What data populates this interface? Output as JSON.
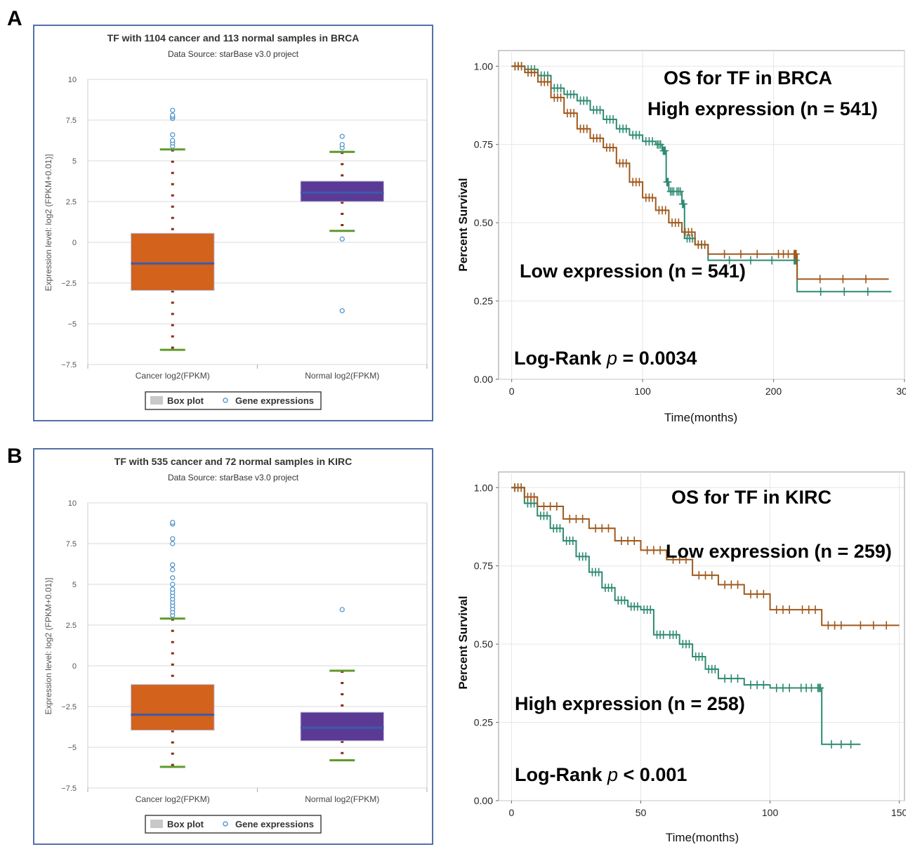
{
  "panels": [
    {
      "letter": "A",
      "boxplot": {
        "title": "TF with 1104 cancer and 113 normal samples in BRCA",
        "subtitle": "Data Source: starBase v3.0 project",
        "ylabel": "Expression level: log2 (FPKM+0.01)]",
        "yticks": [
          "10",
          "7.5",
          "5",
          "2.5",
          "0",
          "−2.5",
          "−5",
          "−7.5"
        ],
        "legend": {
          "box": "Box plot",
          "points": "Gene expressions"
        }
      },
      "survival": {
        "title": "OS for TF in BRCA",
        "high_label": "High expression (n = 541)",
        "low_label": "Low expression (n = 541)",
        "pvalue_prefix": "Log-Rank ",
        "pvalue_p": "p",
        "pvalue_rest": " = 0.0034",
        "ylabel": "Percent Survival",
        "xlabel": "Time(months)",
        "yticks": [
          "0.00",
          "0.25",
          "0.50",
          "0.75",
          "1.00"
        ],
        "xticks": [
          "0",
          "100",
          "200",
          "300"
        ]
      }
    },
    {
      "letter": "B",
      "boxplot": {
        "title": "TF with 535 cancer and 72 normal samples in KIRC",
        "subtitle": "Data Source: starBase v3.0 project",
        "ylabel": "Expression level: log2 (FPKM+0.01)]",
        "yticks": [
          "10",
          "7.5",
          "5",
          "2.5",
          "0",
          "−2.5",
          "−5",
          "−7.5"
        ],
        "legend": {
          "box": "Box plot",
          "points": "Gene expressions"
        }
      },
      "survival": {
        "title": "OS for TF in KIRC",
        "high_label": "High expression (n = 258)",
        "low_label": "Low expression (n = 259)",
        "pvalue_prefix": "Log-Rank ",
        "pvalue_p": "p",
        "pvalue_rest": " < 0.001",
        "ylabel": "Percent Survival",
        "xlabel": "Time(months)",
        "yticks": [
          "0.00",
          "0.25",
          "0.50",
          "0.75",
          "1.00"
        ],
        "xticks": [
          "0",
          "50",
          "100",
          "150"
        ]
      }
    }
  ],
  "colors": {
    "cancer_box": "#d2621c",
    "normal_box": "#5b3a96",
    "median": "#3c5aa8",
    "whisker": "#5e9a2a",
    "dots": "#8b2a14",
    "outlier": "#4a90c8",
    "high_line": "#2e8a72",
    "low_line": "#a0581c",
    "frame": "#5470a8"
  },
  "chart_data": [
    {
      "type": "box",
      "title": "TF with 1104 cancer and 113 normal samples in BRCA",
      "categories": [
        "Cancer log2(FPKM)",
        "Normal log2(FPKM)"
      ],
      "ylim": [
        -7.5,
        10
      ],
      "boxes": [
        {
          "name": "Cancer log2(FPKM)",
          "whisker_low": -6.6,
          "q1": -2.95,
          "median": -1.3,
          "q3": 0.55,
          "whisker_high": 5.7,
          "outliers": [
            5.9,
            6.1,
            6.25,
            6.6,
            7.6,
            7.7,
            7.8,
            8.1
          ]
        },
        {
          "name": "Normal log2(FPKM)",
          "whisker_low": 0.7,
          "q1": 2.5,
          "median": 3.05,
          "q3": 3.75,
          "whisker_high": 5.55,
          "outliers": [
            0.2,
            -4.2,
            5.8,
            6.0,
            6.5
          ]
        }
      ]
    },
    {
      "type": "line",
      "title": "OS for TF in BRCA",
      "xlabel": "Time(months)",
      "ylabel": "Percent Survival",
      "xlim": [
        -10,
        300
      ],
      "ylim": [
        0,
        1.05
      ],
      "series": [
        {
          "name": "High expression (n = 541)",
          "x": [
            0,
            10,
            20,
            30,
            40,
            50,
            60,
            70,
            80,
            90,
            100,
            110,
            115,
            118,
            120,
            125,
            130,
            132,
            140,
            150,
            215,
            218,
            290
          ],
          "y": [
            1.0,
            0.99,
            0.97,
            0.93,
            0.91,
            0.89,
            0.86,
            0.83,
            0.8,
            0.78,
            0.76,
            0.75,
            0.73,
            0.63,
            0.6,
            0.6,
            0.56,
            0.45,
            0.43,
            0.38,
            0.38,
            0.28,
            0.28
          ]
        },
        {
          "name": "Low expression (n = 541)",
          "x": [
            0,
            10,
            20,
            30,
            40,
            50,
            60,
            70,
            80,
            90,
            100,
            110,
            120,
            130,
            140,
            150,
            200,
            215,
            218,
            288
          ],
          "y": [
            1.0,
            0.98,
            0.95,
            0.9,
            0.85,
            0.8,
            0.77,
            0.74,
            0.69,
            0.63,
            0.58,
            0.54,
            0.5,
            0.47,
            0.43,
            0.4,
            0.4,
            0.4,
            0.32,
            0.32
          ]
        }
      ]
    },
    {
      "type": "box",
      "title": "TF with 535 cancer and 72 normal samples in KIRC",
      "categories": [
        "Cancer log2(FPKM)",
        "Normal log2(FPKM)"
      ],
      "ylim": [
        -7.5,
        10
      ],
      "boxes": [
        {
          "name": "Cancer log2(FPKM)",
          "whisker_low": -6.2,
          "q1": -3.95,
          "median": -3.0,
          "q3": -1.15,
          "whisker_high": 2.9,
          "outliers": [
            3.1,
            3.3,
            3.5,
            3.7,
            3.9,
            4.1,
            4.3,
            4.5,
            4.7,
            5.0,
            5.4,
            5.9,
            6.2,
            7.5,
            7.8,
            8.7,
            8.8
          ]
        },
        {
          "name": "Normal log2(FPKM)",
          "whisker_low": -5.8,
          "q1": -4.6,
          "median": -3.8,
          "q3": -2.85,
          "whisker_high": -0.3,
          "outliers": [
            3.45
          ]
        }
      ]
    },
    {
      "type": "line",
      "title": "OS for TF in KIRC",
      "xlabel": "Time(months)",
      "ylabel": "Percent Survival",
      "xlim": [
        -5,
        152
      ],
      "ylim": [
        0,
        1.05
      ],
      "series": [
        {
          "name": "High expression (n = 258)",
          "x": [
            0,
            5,
            10,
            15,
            20,
            25,
            30,
            35,
            40,
            45,
            50,
            55,
            60,
            65,
            70,
            75,
            80,
            90,
            100,
            110,
            118,
            120,
            135
          ],
          "y": [
            1.0,
            0.95,
            0.91,
            0.87,
            0.83,
            0.78,
            0.73,
            0.68,
            0.64,
            0.62,
            0.61,
            0.53,
            0.53,
            0.5,
            0.46,
            0.42,
            0.39,
            0.37,
            0.36,
            0.36,
            0.36,
            0.18,
            0.18
          ]
        },
        {
          "name": "Low expression (n = 259)",
          "x": [
            0,
            5,
            10,
            20,
            30,
            40,
            50,
            60,
            70,
            80,
            90,
            100,
            110,
            120,
            130,
            150
          ],
          "y": [
            1.0,
            0.97,
            0.94,
            0.9,
            0.87,
            0.83,
            0.8,
            0.77,
            0.72,
            0.69,
            0.66,
            0.61,
            0.61,
            0.56,
            0.56,
            0.56
          ]
        }
      ]
    }
  ]
}
